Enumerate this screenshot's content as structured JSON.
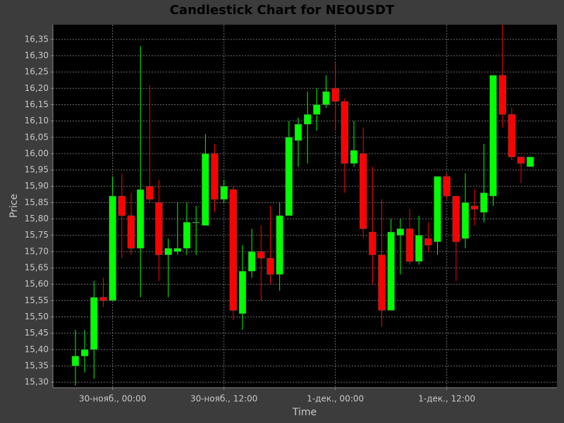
{
  "chart_data": {
    "type": "candlestick",
    "title": "Candlestick Chart for NEOUSDT",
    "x_label": "Time",
    "y_label": "Price",
    "categories": [
      null,
      null,
      null,
      null,
      "30-нояб., 00:00",
      null,
      null,
      null,
      null,
      null,
      null,
      null,
      null,
      null,
      null,
      null,
      "30-нояб., 12:00",
      null,
      null,
      null,
      null,
      null,
      null,
      null,
      null,
      null,
      null,
      null,
      "1-дек., 00:00",
      null,
      null,
      null,
      null,
      null,
      null,
      null,
      null,
      null,
      null,
      null,
      "1-дек., 12:00",
      null,
      null,
      null,
      null,
      null,
      null,
      null,
      null,
      null
    ],
    "series": [
      {
        "name": "NEOUSDT",
        "open": [
          15.35,
          15.38,
          15.4,
          15.56,
          15.55,
          15.87,
          15.81,
          15.71,
          15.9,
          15.85,
          15.69,
          15.7,
          15.71,
          15.79,
          15.78,
          16.0,
          15.86,
          15.89,
          15.51,
          15.64,
          15.7,
          15.68,
          15.63,
          15.81,
          16.04,
          16.09,
          16.12,
          16.15,
          16.2,
          16.16,
          15.97,
          16.0,
          15.76,
          15.69,
          15.52,
          15.75,
          15.77,
          15.67,
          15.74,
          15.73,
          15.93,
          15.87,
          15.74,
          15.84,
          15.82,
          15.87,
          16.24,
          16.12,
          15.99,
          15.96
        ],
        "high": [
          15.46,
          15.46,
          15.61,
          15.62,
          15.93,
          15.94,
          15.88,
          16.33,
          16.21,
          15.92,
          15.74,
          15.85,
          15.85,
          15.84,
          16.06,
          16.03,
          15.92,
          15.9,
          15.72,
          15.77,
          15.78,
          15.84,
          15.85,
          16.1,
          16.11,
          16.19,
          16.2,
          16.24,
          16.28,
          16.17,
          16.1,
          16.08,
          15.96,
          15.86,
          15.8,
          15.8,
          15.83,
          15.81,
          15.79,
          15.93,
          15.94,
          15.87,
          15.94,
          15.89,
          16.03,
          16.24,
          16.4,
          16.14,
          15.99,
          15.99
        ],
        "low": [
          15.29,
          15.33,
          15.31,
          15.53,
          15.55,
          15.68,
          15.69,
          15.56,
          15.85,
          15.61,
          15.56,
          15.69,
          15.69,
          15.69,
          15.78,
          15.82,
          15.85,
          15.49,
          15.46,
          15.62,
          15.55,
          15.6,
          15.58,
          15.81,
          15.96,
          15.97,
          16.07,
          16.14,
          16.07,
          15.88,
          15.96,
          15.74,
          15.6,
          15.47,
          15.52,
          15.63,
          15.66,
          15.66,
          15.7,
          15.69,
          15.86,
          15.61,
          15.71,
          15.78,
          15.79,
          15.84,
          16.08,
          15.98,
          15.91,
          15.96
        ],
        "close": [
          15.38,
          15.4,
          15.56,
          15.55,
          15.87,
          15.81,
          15.71,
          15.89,
          15.86,
          15.69,
          15.71,
          15.71,
          15.79,
          15.79,
          16.0,
          15.86,
          15.9,
          15.52,
          15.64,
          15.7,
          15.68,
          15.63,
          15.81,
          16.05,
          16.09,
          16.12,
          16.15,
          16.19,
          16.16,
          15.97,
          16.01,
          15.77,
          15.69,
          15.52,
          15.76,
          15.77,
          15.67,
          15.75,
          15.72,
          15.93,
          15.87,
          15.73,
          15.85,
          15.83,
          15.88,
          16.24,
          16.12,
          15.99,
          15.97,
          15.99
        ]
      }
    ],
    "up_color": "#00ff00",
    "down_color": "#ff0000",
    "ylim": [
      15.283,
      16.395
    ],
    "yticks": [
      {
        "value": 15.3,
        "label": "15,30"
      },
      {
        "value": 15.35,
        "label": "15,35"
      },
      {
        "value": 15.4,
        "label": "15,40"
      },
      {
        "value": 15.45,
        "label": "15,45"
      },
      {
        "value": 15.5,
        "label": "15,50"
      },
      {
        "value": 15.55,
        "label": "15,55"
      },
      {
        "value": 15.6,
        "label": "15,60"
      },
      {
        "value": 15.65,
        "label": "15,65"
      },
      {
        "value": 15.7,
        "label": "15,70"
      },
      {
        "value": 15.75,
        "label": "15,75"
      },
      {
        "value": 15.8,
        "label": "15,80"
      },
      {
        "value": 15.85,
        "label": "15,85"
      },
      {
        "value": 15.9,
        "label": "15,90"
      },
      {
        "value": 15.95,
        "label": "15,95"
      },
      {
        "value": 16.0,
        "label": "16,00"
      },
      {
        "value": 16.05,
        "label": "16,05"
      },
      {
        "value": 16.1,
        "label": "16,10"
      },
      {
        "value": 16.15,
        "label": "16,15"
      },
      {
        "value": 16.2,
        "label": "16,20"
      },
      {
        "value": 16.25,
        "label": "16,25"
      },
      {
        "value": 16.3,
        "label": "16,30"
      },
      {
        "value": 16.35,
        "label": "16,35"
      }
    ],
    "grid": true
  }
}
